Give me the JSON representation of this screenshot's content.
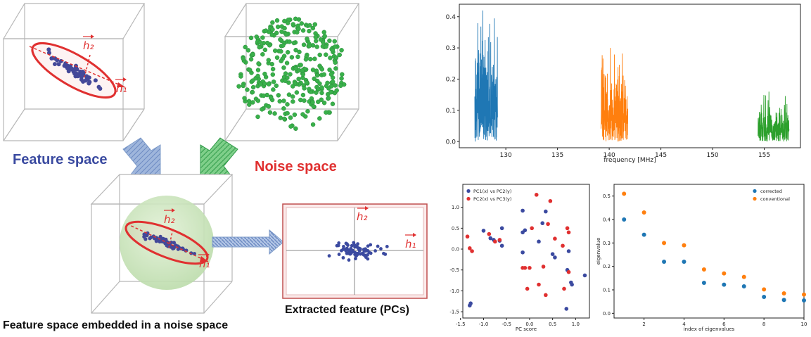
{
  "diagram": {
    "feature_space_label": "Feature space",
    "noise_space_label": "Noise space",
    "embedded_caption": "Feature space embedded in a noise space",
    "extracted_caption": "Extracted feature (PCs)",
    "h1_label": "h₁",
    "h2_label": "h₂",
    "colors": {
      "feature_blue": "#3b4aa0",
      "noise_green": "#39b04a",
      "ellipse_red": "#e03030",
      "sphere_green": "#cfe8c0",
      "arrow_blue": "#7f9cc9"
    }
  },
  "chart_data": [
    {
      "type": "line",
      "xlabel": "frequency [MHz]",
      "ylabel": "",
      "xlim": [
        125.5,
        158.5
      ],
      "ylim": [
        -0.02,
        0.44
      ],
      "xticks": [
        130,
        135,
        140,
        145,
        150,
        155
      ],
      "yticks": [
        0.0,
        0.1,
        0.2,
        0.3,
        0.4
      ],
      "series": [
        {
          "color": "#1f77b4",
          "x_range": [
            127.0,
            129.2
          ],
          "peak": 0.42
        },
        {
          "color": "#ff7f0e",
          "x_range": [
            139.2,
            141.8
          ],
          "peak": 0.3
        },
        {
          "color": "#2ca02c",
          "x_range": [
            154.4,
            157.4
          ],
          "peak": 0.16
        }
      ]
    },
    {
      "type": "scatter",
      "xlabel": "PC score",
      "ylabel": "",
      "xlim": [
        -1.45,
        1.3
      ],
      "ylim": [
        -1.65,
        1.55
      ],
      "xticks": [
        -1.5,
        -1.0,
        -0.5,
        0.0,
        0.5,
        1.0
      ],
      "xtick_labels": [
        "-1.5",
        "-1.0",
        "-0.5",
        "0.0",
        "0.5",
        "1.0"
      ],
      "yticks": [
        -1.5,
        -1.0,
        -0.5,
        0.0,
        0.5,
        1.0
      ],
      "ytick_labels": [
        "-1.5",
        "-1.0",
        "-0.5",
        "0.0",
        "0.5",
        "1.0"
      ],
      "legend_position": "top-left",
      "series": [
        {
          "name": "PC1(x) vs PC2(y)",
          "color": "#3b4aa0",
          "points": [
            [
              -1.0,
              0.44
            ],
            [
              -0.85,
              0.26
            ],
            [
              -0.78,
              0.22
            ],
            [
              -0.65,
              0.2
            ],
            [
              -0.6,
              0.08
            ],
            [
              -0.6,
              0.5
            ],
            [
              -0.15,
              0.92
            ],
            [
              -0.15,
              0.4
            ],
            [
              -0.15,
              -0.08
            ],
            [
              0.2,
              0.18
            ],
            [
              0.28,
              0.62
            ],
            [
              0.35,
              0.9
            ],
            [
              0.5,
              -0.12
            ],
            [
              0.55,
              -0.2
            ],
            [
              0.82,
              -0.5
            ],
            [
              0.85,
              -0.05
            ],
            [
              0.92,
              -0.85
            ],
            [
              0.9,
              -0.8
            ],
            [
              0.8,
              -1.43
            ],
            [
              1.2,
              -0.63
            ],
            [
              -1.28,
              -1.3
            ],
            [
              -1.3,
              -1.35
            ],
            [
              -0.1,
              0.45
            ]
          ]
        },
        {
          "name": "PC2(x) vs PC3(y)",
          "color": "#e03030",
          "points": [
            [
              -1.35,
              0.3
            ],
            [
              -1.3,
              0.02
            ],
            [
              -1.25,
              -0.05
            ],
            [
              -0.88,
              0.36
            ],
            [
              -0.75,
              0.18
            ],
            [
              -0.65,
              0.22
            ],
            [
              -0.15,
              -0.45
            ],
            [
              -0.1,
              -0.45
            ],
            [
              -0.05,
              -0.95
            ],
            [
              0.0,
              -0.45
            ],
            [
              0.05,
              0.5
            ],
            [
              0.15,
              1.3
            ],
            [
              0.2,
              -0.85
            ],
            [
              0.3,
              -0.42
            ],
            [
              0.35,
              -1.1
            ],
            [
              0.45,
              1.15
            ],
            [
              0.55,
              0.25
            ],
            [
              0.72,
              0.08
            ],
            [
              0.82,
              0.5
            ],
            [
              0.85,
              0.4
            ],
            [
              0.85,
              -0.55
            ],
            [
              0.75,
              -0.95
            ],
            [
              0.4,
              0.6
            ]
          ]
        }
      ]
    },
    {
      "type": "scatter",
      "xlabel": "index of eigenvalues",
      "ylabel": "eigenvalue",
      "xlim": [
        0.5,
        10
      ],
      "ylim": [
        -0.02,
        0.55
      ],
      "xticks": [
        2,
        4,
        6,
        8,
        10
      ],
      "yticks": [
        0.0,
        0.1,
        0.2,
        0.3,
        0.4,
        0.5
      ],
      "ytick_labels": [
        "0.0",
        "0.1",
        "0.2",
        "0.3",
        "0.4",
        "0.5"
      ],
      "legend_position": "top-right",
      "series": [
        {
          "name": "corrected",
          "color": "#1f77b4",
          "x": [
            1,
            2,
            3,
            4,
            5,
            6,
            7,
            8,
            9,
            10
          ],
          "y": [
            0.4,
            0.335,
            0.22,
            0.22,
            0.13,
            0.122,
            0.115,
            0.07,
            0.057,
            0.055
          ]
        },
        {
          "name": "conventional",
          "color": "#ff7f0e",
          "x": [
            1,
            2,
            3,
            4,
            5,
            6,
            7,
            8,
            9,
            10
          ],
          "y": [
            0.51,
            0.43,
            0.3,
            0.29,
            0.187,
            0.17,
            0.155,
            0.102,
            0.085,
            0.08
          ]
        }
      ]
    }
  ]
}
